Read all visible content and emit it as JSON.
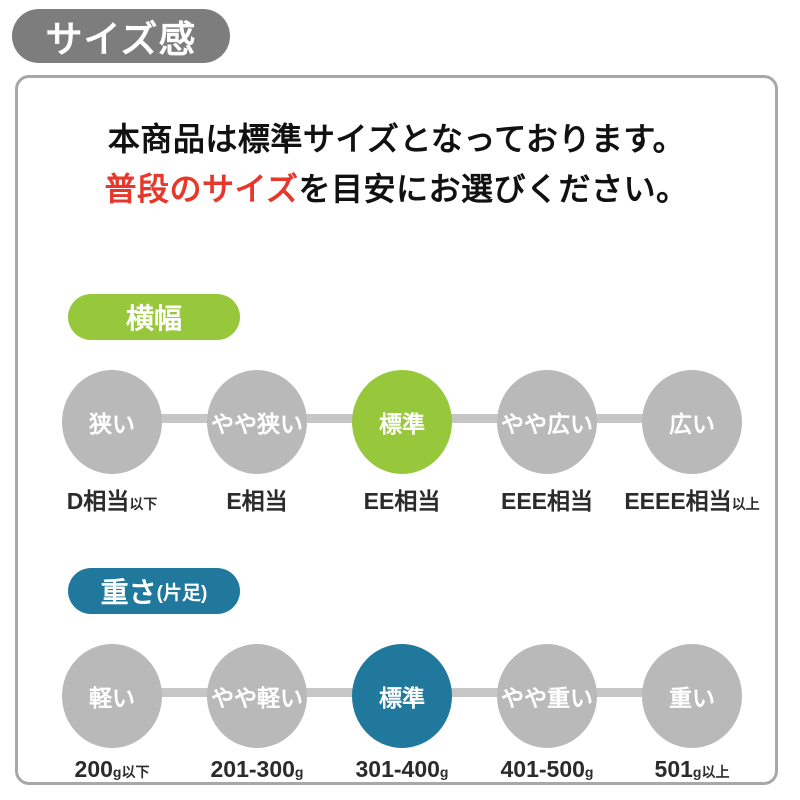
{
  "title_badge": "サイズ感",
  "intro": {
    "line1": "本商品は標準サイズとなっております。",
    "line2_highlight": "普段のサイズ",
    "line2_rest": "を目安にお選びください。"
  },
  "colors": {
    "title_badge_gray": "#7d7d7d",
    "panel_border_gray": "#a8a8a8",
    "circle_gray": "#b9b9b9",
    "track_gray": "#c6c6c6",
    "accent_green": "#97c83c",
    "accent_blue": "#20799c",
    "highlight_red": "#e8382b"
  },
  "sections": [
    {
      "id": "width",
      "badge": {
        "label": "横幅",
        "suffix": ""
      },
      "accent": "#97c83c",
      "selected_index": 2,
      "steps": [
        {
          "circle": "狭い",
          "label": "D相当",
          "label_suffix": "以下",
          "selected": false
        },
        {
          "circle": "やや狭い",
          "label": "E相当",
          "label_suffix": "",
          "selected": false
        },
        {
          "circle": "標準",
          "label": "EE相当",
          "label_suffix": "",
          "selected": true
        },
        {
          "circle": "やや広い",
          "label": "EEE相当",
          "label_suffix": "",
          "selected": false
        },
        {
          "circle": "広い",
          "label": "EEEE相当",
          "label_suffix": "以上",
          "selected": false
        }
      ]
    },
    {
      "id": "weight",
      "badge": {
        "label": "重さ",
        "suffix": "(片足)"
      },
      "accent": "#20799c",
      "selected_index": 2,
      "steps": [
        {
          "circle": "軽い",
          "label": "200",
          "label_suffix": "g以下",
          "selected": false
        },
        {
          "circle": "やや軽い",
          "label": "201-300",
          "label_suffix": "g",
          "selected": false
        },
        {
          "circle": "標準",
          "label": "301-400",
          "label_suffix": "g",
          "selected": true
        },
        {
          "circle": "やや重い",
          "label": "401-500",
          "label_suffix": "g",
          "selected": false
        },
        {
          "circle": "重い",
          "label": "501",
          "label_suffix": "g以上",
          "selected": false
        }
      ]
    }
  ]
}
